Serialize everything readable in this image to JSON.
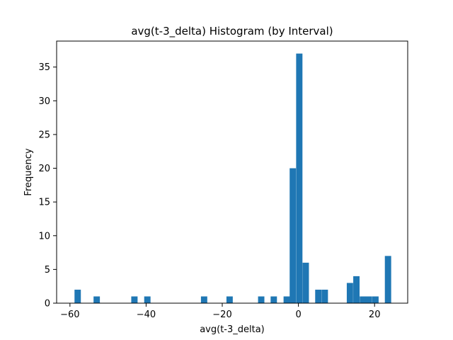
{
  "chart_data": {
    "type": "bar",
    "title": "avg(t-3_delta) Histogram (by Interval)",
    "xlabel": "avg(t-3_delta)",
    "ylabel": "Frequency",
    "xlim": [
      -63.5,
      28.7
    ],
    "ylim": [
      0,
      38.85
    ],
    "xticks": [
      -60,
      -40,
      -20,
      0,
      20
    ],
    "yticks": [
      0,
      5,
      10,
      15,
      20,
      25,
      30,
      35
    ],
    "bin_width": 1.66,
    "bar_color": "#1f77b4",
    "grid": false,
    "bins": [
      {
        "x": -58.8,
        "value": 2
      },
      {
        "x": -53.8,
        "value": 1
      },
      {
        "x": -43.9,
        "value": 1
      },
      {
        "x": -40.5,
        "value": 1
      },
      {
        "x": -25.6,
        "value": 1
      },
      {
        "x": -18.9,
        "value": 1
      },
      {
        "x": -10.6,
        "value": 1
      },
      {
        "x": -7.3,
        "value": 1
      },
      {
        "x": -3.9,
        "value": 1
      },
      {
        "x": -2.3,
        "value": 20
      },
      {
        "x": -0.6,
        "value": 37
      },
      {
        "x": 1.1,
        "value": 6
      },
      {
        "x": 4.4,
        "value": 2
      },
      {
        "x": 6.1,
        "value": 2
      },
      {
        "x": 12.7,
        "value": 3
      },
      {
        "x": 14.4,
        "value": 4
      },
      {
        "x": 16.1,
        "value": 1
      },
      {
        "x": 17.7,
        "value": 1
      },
      {
        "x": 19.4,
        "value": 1
      },
      {
        "x": 22.7,
        "value": 7
      }
    ]
  }
}
